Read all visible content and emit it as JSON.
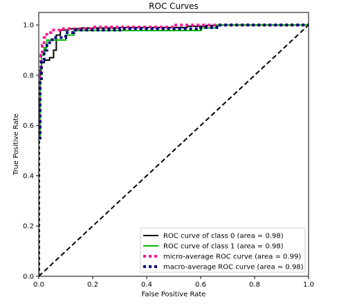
{
  "chart_data": {
    "type": "line",
    "title": "ROC Curves",
    "xlabel": "False Positive Rate",
    "ylabel": "True Positive Rate",
    "xlim": [
      0.0,
      1.0
    ],
    "ylim": [
      0.0,
      1.05
    ],
    "xticks": [
      "0.0",
      "0.2",
      "0.4",
      "0.6",
      "0.8",
      "1.0"
    ],
    "yticks": [
      "0.0",
      "0.2",
      "0.4",
      "0.6",
      "0.8",
      "1.0"
    ],
    "grid": false,
    "legend_position": "lower right",
    "series": [
      {
        "name": "ROC curve of class 0 (area = 0.98)",
        "color": "#000000",
        "style": "solid",
        "x": [
          0.0,
          0.0,
          0.005,
          0.005,
          0.01,
          0.01,
          0.02,
          0.02,
          0.04,
          0.04,
          0.055,
          0.055,
          0.065,
          0.065,
          0.08,
          0.08,
          0.11,
          0.11,
          0.16,
          0.16,
          0.3,
          0.3,
          0.55,
          0.55,
          0.62,
          0.62,
          0.67,
          0.67,
          1.0
        ],
        "y": [
          0.0,
          0.7,
          0.7,
          0.82,
          0.82,
          0.85,
          0.85,
          0.86,
          0.86,
          0.87,
          0.87,
          0.9,
          0.9,
          0.96,
          0.96,
          0.98,
          0.98,
          0.985,
          0.985,
          0.988,
          0.988,
          0.99,
          0.99,
          0.995,
          0.995,
          0.998,
          0.998,
          1.0,
          1.0
        ]
      },
      {
        "name": "ROC curve of class 1 (area = 0.98)",
        "color": "#00bb00",
        "style": "solid",
        "x": [
          0.0,
          0.0,
          0.005,
          0.005,
          0.01,
          0.01,
          0.02,
          0.02,
          0.03,
          0.03,
          0.1,
          0.1,
          0.13,
          0.13,
          0.6,
          0.6,
          0.66,
          0.66,
          1.0
        ],
        "y": [
          0.0,
          0.55,
          0.55,
          0.8,
          0.8,
          0.88,
          0.88,
          0.91,
          0.91,
          0.94,
          0.94,
          0.96,
          0.96,
          0.978,
          0.978,
          0.988,
          0.988,
          1.0,
          1.0
        ]
      },
      {
        "name": "micro-average ROC curve (area = 0.99)",
        "color": "#ff1493",
        "style": "dotted",
        "x": [
          0.0,
          0.0,
          0.003,
          0.003,
          0.008,
          0.008,
          0.013,
          0.013,
          0.02,
          0.02,
          0.03,
          0.03,
          0.045,
          0.045,
          0.08,
          0.08,
          0.2,
          0.2,
          0.5,
          0.5,
          1.0
        ],
        "y": [
          0.0,
          0.6,
          0.6,
          0.8,
          0.8,
          0.88,
          0.88,
          0.92,
          0.92,
          0.95,
          0.95,
          0.97,
          0.97,
          0.98,
          0.98,
          0.985,
          0.985,
          0.992,
          0.992,
          1.0,
          1.0
        ]
      },
      {
        "name": "macro-average ROC curve (area = 0.98)",
        "color": "#000080",
        "style": "dotted",
        "x": [
          0.0,
          0.0,
          0.005,
          0.005,
          0.01,
          0.01,
          0.02,
          0.02,
          0.03,
          0.03,
          0.05,
          0.05,
          0.1,
          0.1,
          0.13,
          0.13,
          0.3,
          0.3,
          0.6,
          0.6,
          0.66,
          0.66,
          1.0
        ],
        "y": [
          0.0,
          0.55,
          0.55,
          0.78,
          0.78,
          0.86,
          0.86,
          0.9,
          0.9,
          0.93,
          0.93,
          0.95,
          0.95,
          0.97,
          0.97,
          0.98,
          0.98,
          0.985,
          0.985,
          0.99,
          0.99,
          1.0,
          1.0
        ]
      }
    ],
    "reference_line": {
      "x": [
        0.0,
        1.0
      ],
      "y": [
        0.0,
        1.0
      ],
      "color": "#000000",
      "style": "dashed"
    }
  }
}
